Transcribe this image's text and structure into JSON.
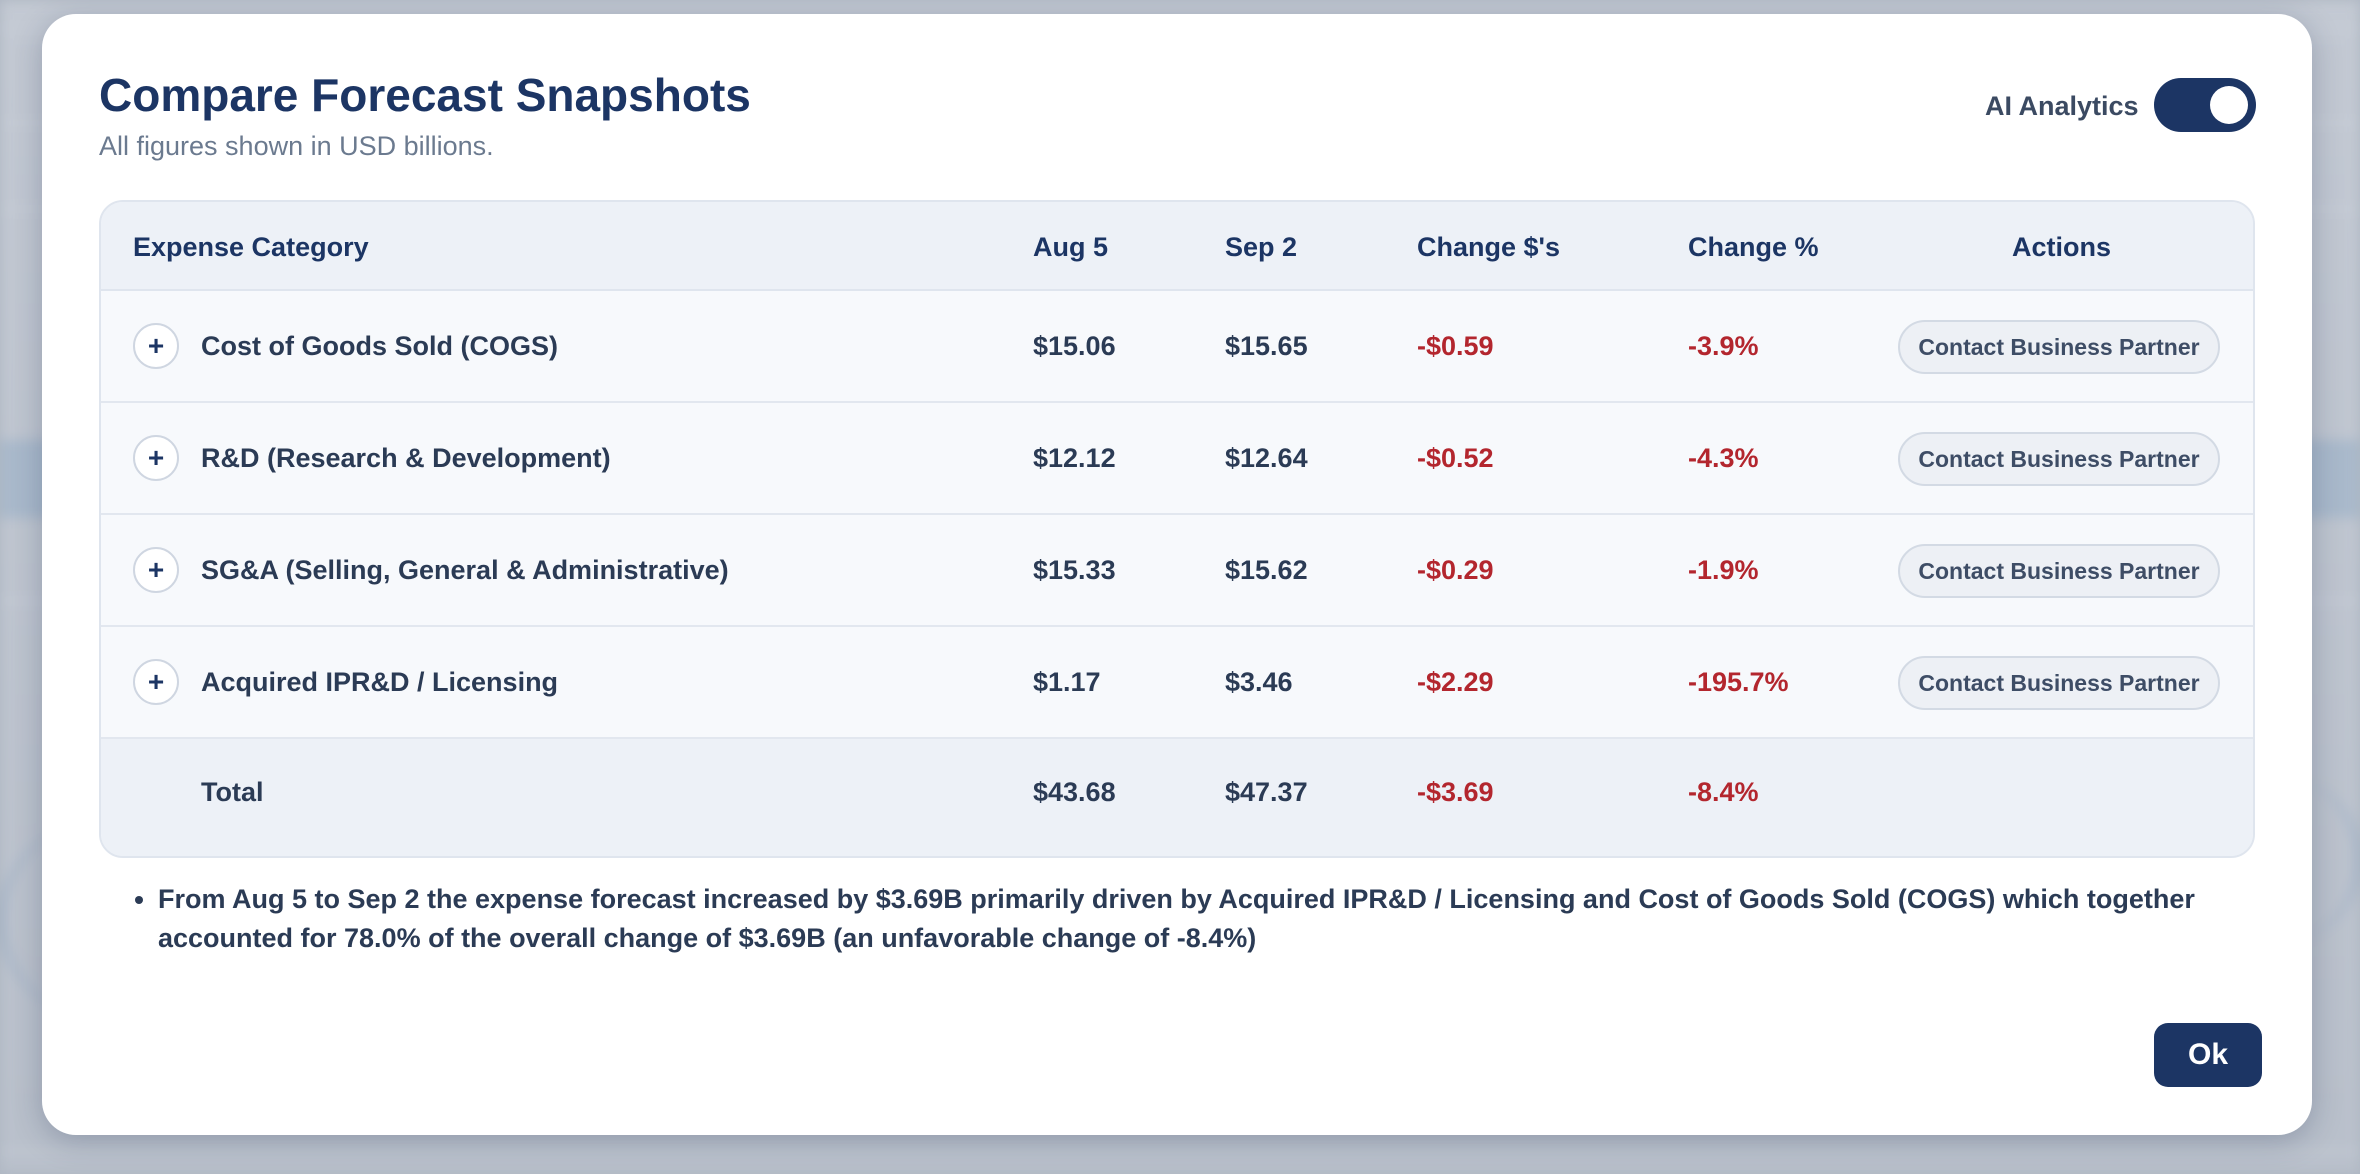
{
  "modal": {
    "title": "Compare Forecast Snapshots",
    "subtitle": "All figures shown in USD billions.",
    "ai_toggle": {
      "label": "AI Analytics",
      "on": true
    },
    "ok_label": "Ok"
  },
  "table": {
    "headers": {
      "category": "Expense Category",
      "aug": "Aug 5",
      "sep": "Sep 2",
      "change_usd": "Change $'s",
      "change_pct": "Change %",
      "actions": "Actions"
    },
    "rows": [
      {
        "category": "Cost of Goods Sold (COGS)",
        "aug": "$15.06",
        "sep": "$15.65",
        "change_usd": "-$0.59",
        "change_pct": "-3.9%",
        "action": "Contact Business Partner",
        "expand": "+"
      },
      {
        "category": "R&D (Research & Development)",
        "aug": "$12.12",
        "sep": "$12.64",
        "change_usd": "-$0.52",
        "change_pct": "-4.3%",
        "action": "Contact Business Partner",
        "expand": "+"
      },
      {
        "category": "SG&A (Selling, General & Administrative)",
        "aug": "$15.33",
        "sep": "$15.62",
        "change_usd": "-$0.29",
        "change_pct": "-1.9%",
        "action": "Contact Business Partner",
        "expand": "+"
      },
      {
        "category": "Acquired IPR&D / Licensing",
        "aug": "$1.17",
        "sep": "$3.46",
        "change_usd": "-$2.29",
        "change_pct": "-195.7%",
        "action": "Contact Business Partner",
        "expand": "+"
      }
    ],
    "total": {
      "label": "Total",
      "aug": "$43.68",
      "sep": "$47.37",
      "change_usd": "-$3.69",
      "change_pct": "-8.4%"
    }
  },
  "summary": [
    "From Aug 5 to Sep 2 the expense forecast increased by $3.69B primarily driven by Acquired IPR&D / Licensing and Cost of Goods Sold (COGS) which together accounted for 78.0% of the overall change of $3.69B (an unfavorable change of -8.4%)"
  ],
  "colors": {
    "primary": "#1c3564",
    "negative": "#b3262e",
    "row_bg": "#f7f9fc",
    "header_bg": "#edf1f7"
  }
}
